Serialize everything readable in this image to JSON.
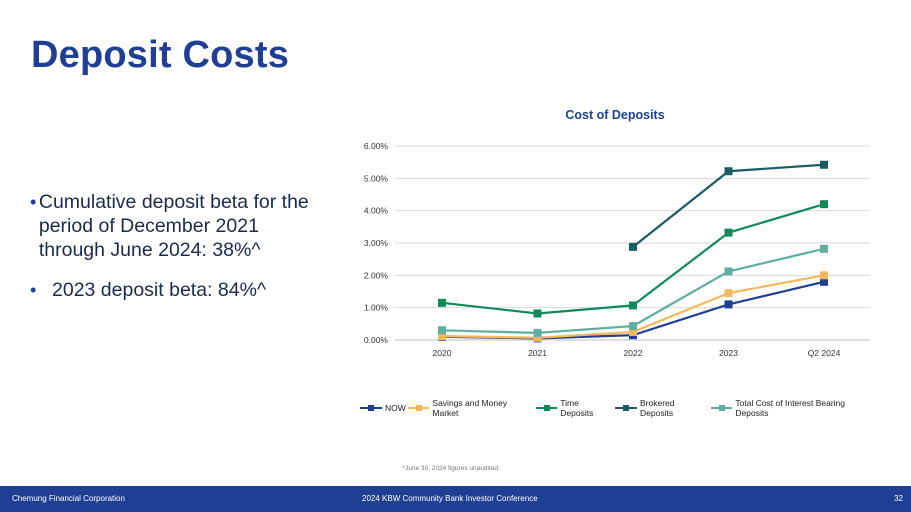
{
  "slide": {
    "title": "Deposit Costs",
    "bullets": [
      "Cumulative deposit beta for the period of December 2021 through June 2024: 38%^",
      "2023 deposit beta: 84%^"
    ],
    "footnote": "^June 30, 2024 figures unaudited.",
    "footer_left": "Chemung Financial Corporation",
    "footer_center": "2024 KBW Community Bank Investor Conference",
    "page_number": "32"
  },
  "chart_data": {
    "type": "line",
    "title": "Cost of Deposits",
    "categories": [
      "2020",
      "2021",
      "2022",
      "2023",
      "Q2 2024"
    ],
    "y_tick_labels": [
      "0.00%",
      "1.00%",
      "2.00%",
      "3.00%",
      "4.00%",
      "5.00%",
      "6.00%"
    ],
    "ylim": [
      0,
      6
    ],
    "grid": true,
    "legend_position": "bottom",
    "series": [
      {
        "name": "NOW",
        "color": "#1f3f94",
        "values": [
          0.1,
          0.05,
          0.15,
          1.1,
          1.8
        ]
      },
      {
        "name": "Savings and Money Market",
        "color": "#f5b85b",
        "values": [
          0.12,
          0.07,
          0.25,
          1.45,
          2.0
        ]
      },
      {
        "name": "Time Deposits",
        "color": "#0f8a5a",
        "values": [
          1.15,
          0.82,
          1.07,
          3.32,
          4.2
        ]
      },
      {
        "name": "Brokered Deposits",
        "color": "#1a5c66",
        "values": [
          null,
          null,
          2.88,
          5.22,
          5.42
        ]
      },
      {
        "name": "Total Cost of Interest Bearing Deposits",
        "color": "#5fae9f",
        "values": [
          0.3,
          0.22,
          0.43,
          2.12,
          2.82
        ]
      }
    ]
  }
}
